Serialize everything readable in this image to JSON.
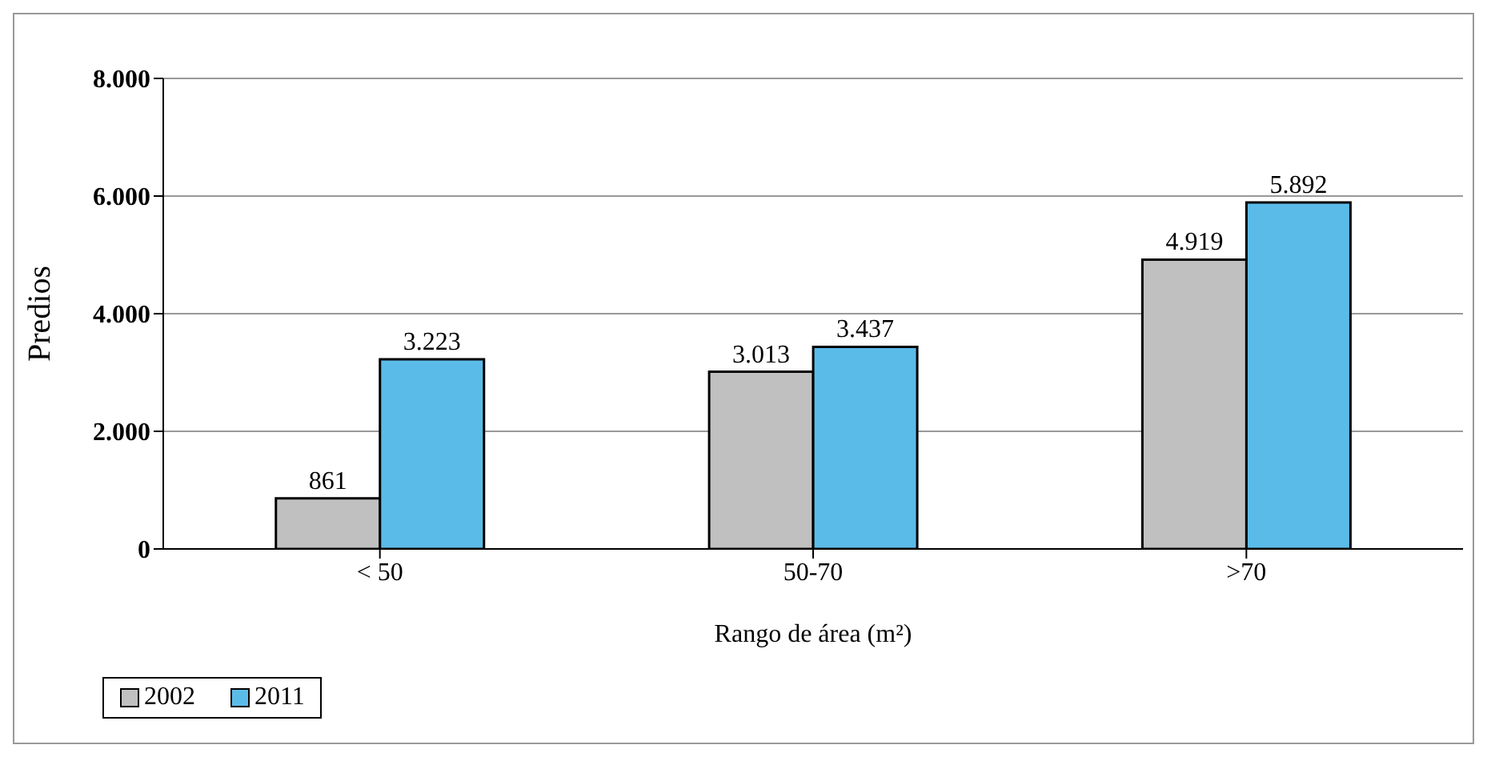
{
  "chart_data": {
    "type": "bar",
    "xlabel": "Rango de área (m²)",
    "ylabel": "Predios",
    "categories": [
      "< 50",
      "50-70",
      ">70"
    ],
    "series": [
      {
        "name": "2002",
        "color": "#c0c0c0",
        "values": [
          861,
          3013,
          4919
        ],
        "value_labels": [
          "861",
          "3.013",
          "4.919"
        ]
      },
      {
        "name": "2011",
        "color": "#5bbbe8",
        "values": [
          3223,
          3437,
          5892
        ],
        "value_labels": [
          "3.223",
          "3.437",
          "5.892"
        ]
      }
    ],
    "ylim": [
      0,
      8000
    ],
    "yticks": [
      {
        "value": 0,
        "label": "0"
      },
      {
        "value": 2000,
        "label": "2.000"
      },
      {
        "value": 4000,
        "label": "4.000"
      },
      {
        "value": 6000,
        "label": "6.000"
      },
      {
        "value": 8000,
        "label": "8.000"
      }
    ],
    "grid": "y",
    "legend": "bottom"
  }
}
